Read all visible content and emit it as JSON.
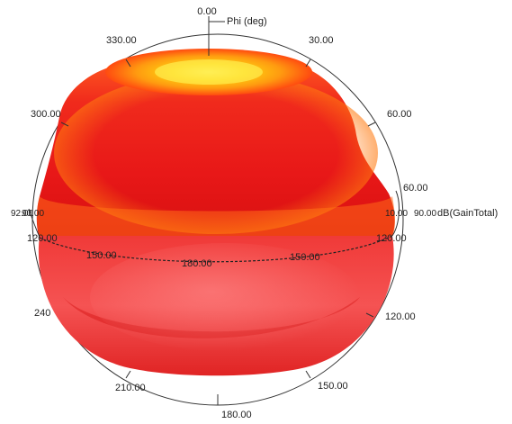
{
  "axis_labels": {
    "phi_title": "Phi (deg)",
    "quantity": "dB(GainTotal)"
  },
  "phi_ticks": {
    "t0": "0.00",
    "t30": "30.00",
    "t60": "60.00",
    "t120": "120.00",
    "t150": "150.00",
    "t180": "180.00",
    "t210": "210.00",
    "t240": "240",
    "t300": "300.00",
    "t330": "330.00"
  },
  "theta_ticks": {
    "right60": "60.00",
    "right90": "90.00",
    "right120": "120.00",
    "left90": "90.00",
    "left120": "120.00",
    "ring150a": "150.00",
    "ring180": "180.00",
    "ring150b": "150.00"
  },
  "overlap_labels": {
    "left_cluster": "92.00",
    "right_cluster": "10.00"
  },
  "colors": {
    "body_dark": "#c80010",
    "body_mid": "#ee1f1f",
    "body_light": "#ff5a5a",
    "highlight": "#ffe020",
    "orange": "#ff8a10",
    "axis": "#333333"
  }
}
